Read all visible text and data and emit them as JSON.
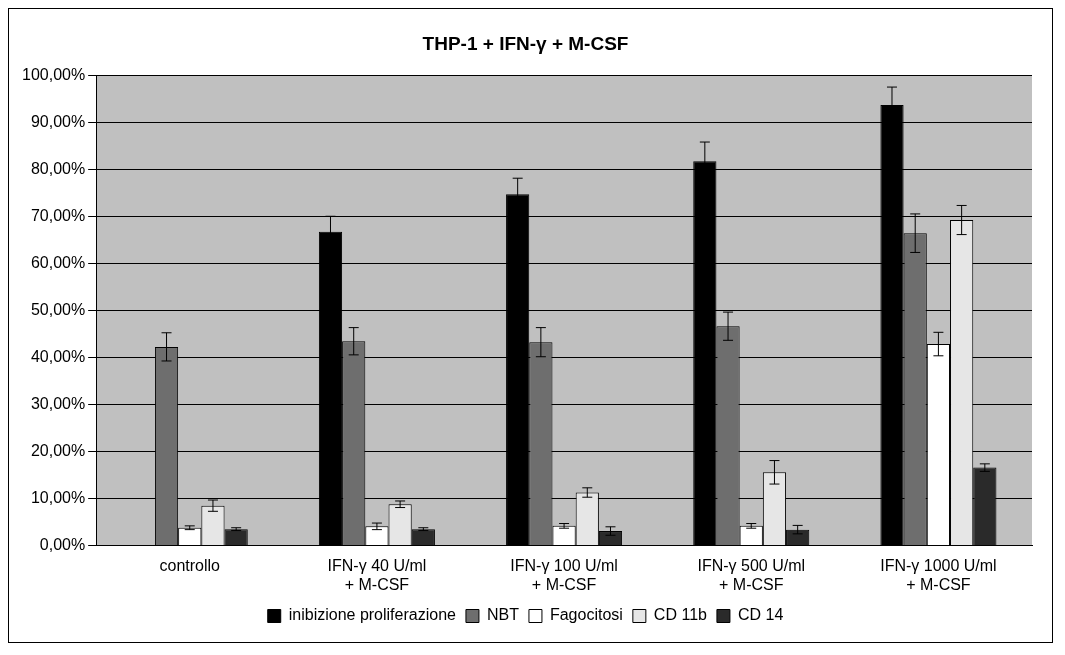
{
  "chart_data": {
    "type": "bar",
    "title": "THP-1 + IFN-γ + M-CSF",
    "categories": [
      "controllo",
      "IFN-γ 40 U/ml\n+ M-CSF",
      "IFN-γ 100 U/ml\n+ M-CSF",
      "IFN-γ 500 U/ml\n+ M-CSF",
      "IFN-γ 1000 U/ml\n+ M-CSF"
    ],
    "series": [
      {
        "name": "inibizione proliferazione",
        "color": "#000000",
        "values": [
          null,
          66.8,
          74.8,
          81.8,
          93.8
        ],
        "errors": [
          null,
          3.3,
          3.4,
          4.1,
          3.8
        ]
      },
      {
        "name": "NBT",
        "color": "#6e6e6e",
        "values": [
          42.3,
          43.5,
          43.3,
          46.7,
          66.5
        ],
        "errors": [
          3,
          2.9,
          3.1,
          3,
          4.1
        ]
      },
      {
        "name": "Fagocitosi",
        "color": "#ffffff",
        "values": [
          3.8,
          4.1,
          4.2,
          4.2,
          42.9
        ],
        "errors": [
          0.4,
          0.7,
          0.5,
          0.5,
          2.5
        ]
      },
      {
        "name": "CD 11b",
        "color": "#e6e6e6",
        "values": [
          8.5,
          8.8,
          11.3,
          15.6,
          69.3
        ],
        "errors": [
          1.2,
          0.7,
          1,
          2.5,
          3.1
        ]
      },
      {
        "name": "CD 14",
        "color": "#2a2a2a",
        "values": [
          3.5,
          3.5,
          3.1,
          3.4,
          16.6
        ],
        "errors": [
          0.3,
          0.3,
          0.9,
          0.9,
          0.8
        ]
      }
    ],
    "ylim": [
      0,
      100
    ],
    "yticks": [
      {
        "value": 0,
        "label": "0,00%"
      },
      {
        "value": 10,
        "label": "10,00%"
      },
      {
        "value": 20,
        "label": "20,00%"
      },
      {
        "value": 30,
        "label": "30,00%"
      },
      {
        "value": 40,
        "label": "40,00%"
      },
      {
        "value": 50,
        "label": "50,00%"
      },
      {
        "value": 60,
        "label": "60,00%"
      },
      {
        "value": 70,
        "label": "70,00%"
      },
      {
        "value": 80,
        "label": "80,00%"
      },
      {
        "value": 90,
        "label": "90,00%"
      },
      {
        "value": 100,
        "label": "100,00%"
      }
    ],
    "grid": "y",
    "legend": "bottom"
  }
}
